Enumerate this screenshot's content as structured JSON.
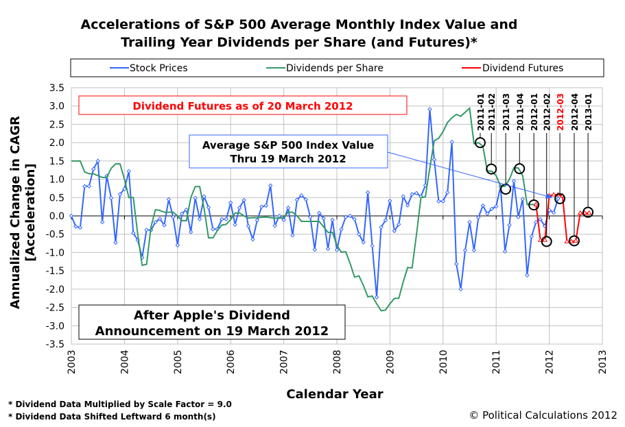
{
  "chart_data": {
    "type": "line",
    "title_lines": [
      "Accelerations of S&P 500 Average Monthly Index Value and",
      "Trailing Year Dividends per Share (and Futures)*"
    ],
    "xlabel": "Calendar Year",
    "ylabel_lines": [
      "Annualized Change in CAGR",
      "[Acceleration]"
    ],
    "xlim": [
      2003,
      2013
    ],
    "ylim": [
      -3.5,
      3.5
    ],
    "x_ticks": [
      "2003",
      "2004",
      "2005",
      "2006",
      "2007",
      "2008",
      "2009",
      "2010",
      "2011",
      "2012",
      "2013"
    ],
    "y_ticks": [
      "3.5",
      "3.0",
      "2.5",
      "2.0",
      "1.5",
      "1.0",
      "0.5",
      "0.0",
      "-0.5",
      "-1.0",
      "-1.5",
      "-2.0",
      "-2.5",
      "-3.0",
      "-3.5"
    ],
    "grid": true,
    "legend_placement": "top",
    "months": [
      "2003-01",
      "2003-02",
      "2003-03",
      "2003-04",
      "2003-05",
      "2003-06",
      "2003-07",
      "2003-08",
      "2003-09",
      "2003-10",
      "2003-11",
      "2003-12",
      "2004-01",
      "2004-02",
      "2004-03",
      "2004-04",
      "2004-05",
      "2004-06",
      "2004-07",
      "2004-08",
      "2004-09",
      "2004-10",
      "2004-11",
      "2004-12",
      "2005-01",
      "2005-02",
      "2005-03",
      "2005-04",
      "2005-05",
      "2005-06",
      "2005-07",
      "2005-08",
      "2005-09",
      "2005-10",
      "2005-11",
      "2005-12",
      "2006-01",
      "2006-02",
      "2006-03",
      "2006-04",
      "2006-05",
      "2006-06",
      "2006-07",
      "2006-08",
      "2006-09",
      "2006-10",
      "2006-11",
      "2006-12",
      "2007-01",
      "2007-02",
      "2007-03",
      "2007-04",
      "2007-05",
      "2007-06",
      "2007-07",
      "2007-08",
      "2007-09",
      "2007-10",
      "2007-11",
      "2007-12",
      "2008-01",
      "2008-02",
      "2008-03",
      "2008-04",
      "2008-05",
      "2008-06",
      "2008-07",
      "2008-08",
      "2008-09",
      "2008-10",
      "2008-11",
      "2008-12",
      "2009-01",
      "2009-02",
      "2009-03",
      "2009-04",
      "2009-05",
      "2009-06",
      "2009-07",
      "2009-08",
      "2009-09",
      "2009-10",
      "2009-11",
      "2009-12",
      "2010-01",
      "2010-02",
      "2010-03",
      "2010-04",
      "2010-05",
      "2010-06",
      "2010-07",
      "2010-08",
      "2010-09",
      "2010-10",
      "2010-11",
      "2010-12",
      "2011-01",
      "2011-02",
      "2011-03",
      "2011-04",
      "2011-05",
      "2011-06",
      "2011-07",
      "2011-08",
      "2011-09",
      "2011-10",
      "2011-11",
      "2011-12",
      "2012-01",
      "2012-02",
      "2012-03",
      "2012-04",
      "2012-05",
      "2012-06",
      "2012-07",
      "2012-08",
      "2012-09",
      "2012-10"
    ],
    "series": [
      {
        "name": "Stock Prices",
        "color": "#3366ff",
        "marker": "diamond",
        "values": [
          0,
          -0.29,
          -0.32,
          0.81,
          0.81,
          1.28,
          1.5,
          -0.17,
          1.09,
          0.49,
          -0.73,
          0.59,
          0.74,
          1.22,
          -0.47,
          -0.66,
          -1.14,
          -0.38,
          -0.39,
          -0.17,
          -0.08,
          -0.25,
          0.45,
          -0.03,
          -0.8,
          0.06,
          0.17,
          -0.44,
          0.49,
          -0.09,
          0.53,
          0.23,
          -0.36,
          -0.36,
          -0.09,
          -0.09,
          0.36,
          -0.24,
          0.22,
          0.43,
          -0.28,
          -0.64,
          -0.12,
          0.25,
          0.28,
          0.83,
          -0.27,
          0,
          -0.11,
          0.22,
          -0.53,
          0.44,
          0.56,
          0.45,
          -0.03,
          -0.92,
          0.08,
          -0.07,
          -0.9,
          -0.11,
          -0.93,
          -0.37,
          -0.03,
          0,
          -0.09,
          -0.5,
          -0.72,
          0.64,
          -0.82,
          -2.22,
          -0.31,
          -0.12,
          0.41,
          -0.41,
          -0.23,
          0.53,
          0.29,
          0.59,
          0.62,
          0.53,
          0.83,
          2.91,
          1.54,
          0.4,
          0.4,
          0.64,
          2.02,
          -1.31,
          -2.0,
          -0.94,
          -0.17,
          -0.94,
          -0.04,
          0.28,
          0.06,
          0.19,
          0.26,
          0.81,
          -0.97,
          -0.25,
          0.95,
          -0.03,
          0.46,
          -1.62,
          -0.56,
          -0.17,
          -0.09,
          -0.28,
          0.16,
          0.09,
          0.47,
          null,
          null,
          null,
          null,
          null,
          null,
          null
        ]
      },
      {
        "name": "Dividends per Share",
        "color": "#339966",
        "marker": "none",
        "values": [
          1.5,
          1.5,
          1.5,
          1.2,
          1.15,
          1.15,
          1.1,
          1.05,
          1.05,
          1.3,
          1.42,
          1.42,
          1.0,
          0.5,
          0.5,
          -0.5,
          -1.35,
          -1.32,
          -0.3,
          0.17,
          0.15,
          0.1,
          0.1,
          0.1,
          0.0,
          -0.13,
          -0.13,
          0.5,
          0.8,
          0.8,
          0.2,
          -0.6,
          -0.6,
          -0.4,
          -0.25,
          -0.23,
          -0.1,
          0.08,
          0.08,
          0.0,
          -0.06,
          -0.05,
          -0.05,
          -0.04,
          -0.03,
          -0.05,
          -0.06,
          -0.06,
          -0.04,
          0.1,
          0.1,
          0.0,
          -0.15,
          -0.15,
          -0.15,
          -0.15,
          -0.15,
          -0.3,
          -0.45,
          -0.45,
          -0.8,
          -0.99,
          -0.98,
          -1.3,
          -1.67,
          -1.64,
          -1.9,
          -2.21,
          -2.19,
          -2.4,
          -2.59,
          -2.57,
          -2.4,
          -2.25,
          -2.25,
          -1.8,
          -1.41,
          -1.42,
          -0.5,
          0.5,
          0.52,
          1.3,
          2.05,
          2.12,
          2.3,
          2.55,
          2.68,
          2.77,
          2.72,
          2.83,
          2.94,
          1.97,
          2.0,
          1.9,
          1.23,
          1.22,
          1.1,
          0.81,
          0.81,
          1.0,
          1.31,
          1.31,
          1.1,
          0.31,
          0.31,
          0.31,
          null,
          null,
          null,
          null,
          null,
          null,
          null,
          null,
          null,
          null,
          null,
          null
        ]
      },
      {
        "name": "Dividend Futures",
        "color": "#ff0000",
        "marker": "triangle",
        "values": [
          null,
          null,
          null,
          null,
          null,
          null,
          null,
          null,
          null,
          null,
          null,
          null,
          null,
          null,
          null,
          null,
          null,
          null,
          null,
          null,
          null,
          null,
          null,
          null,
          null,
          null,
          null,
          null,
          null,
          null,
          null,
          null,
          null,
          null,
          null,
          null,
          null,
          null,
          null,
          null,
          null,
          null,
          null,
          null,
          null,
          null,
          null,
          null,
          null,
          null,
          null,
          null,
          null,
          null,
          null,
          null,
          null,
          null,
          null,
          null,
          null,
          null,
          null,
          null,
          null,
          null,
          null,
          null,
          null,
          null,
          null,
          null,
          null,
          null,
          null,
          null,
          null,
          null,
          null,
          null,
          null,
          null,
          null,
          null,
          null,
          null,
          null,
          null,
          null,
          null,
          null,
          null,
          null,
          null,
          null,
          null,
          null,
          null,
          null,
          null,
          null,
          null,
          null,
          null,
          null,
          0.31,
          -0.66,
          -0.66,
          0.55,
          0.58,
          0.58,
          0.55,
          -0.7,
          -0.7,
          -0.68,
          0.08,
          0.08,
          0.08
        ]
      }
    ],
    "annotations": [
      {
        "label": "2011-01",
        "x": 2010.7,
        "y": 2.0,
        "color": "#000000"
      },
      {
        "label": "2011-02",
        "x": 2010.91,
        "y": 1.28,
        "color": "#000000"
      },
      {
        "label": "2011-03",
        "x": 2011.18,
        "y": 0.73,
        "color": "#000000"
      },
      {
        "label": "2011-04",
        "x": 2011.44,
        "y": 1.29,
        "color": "#000000"
      },
      {
        "label": "2012-01",
        "x": 2011.71,
        "y": 0.3,
        "color": "#000000"
      },
      {
        "label": "2012-02",
        "x": 2011.95,
        "y": -0.7,
        "color": "#000000"
      },
      {
        "label": "2012-03",
        "x": 2012.2,
        "y": 0.47,
        "color": "#ff0000"
      },
      {
        "label": "2012-04",
        "x": 2012.47,
        "y": -0.68,
        "color": "#000000"
      },
      {
        "label": "2013-01",
        "x": 2012.73,
        "y": 0.1,
        "color": "#000000"
      }
    ],
    "text_boxes": {
      "futures_date": "Dividend Futures as of 20 March 2012",
      "index_value_lines": [
        "Average S&P 500 Index Value",
        "Thru 19 March 2012"
      ],
      "apple_lines": [
        "After Apple's Dividend",
        "Announcement on 19 March 2012"
      ]
    },
    "arrow_target": {
      "x": 2012.05,
      "y": 0.5
    },
    "footnotes": [
      "* Dividend Data Multiplied by Scale Factor = 9.0",
      "* Dividend Data Shifted Leftward 6 month(s)"
    ],
    "copyright": "© Political Calculations 2012"
  }
}
